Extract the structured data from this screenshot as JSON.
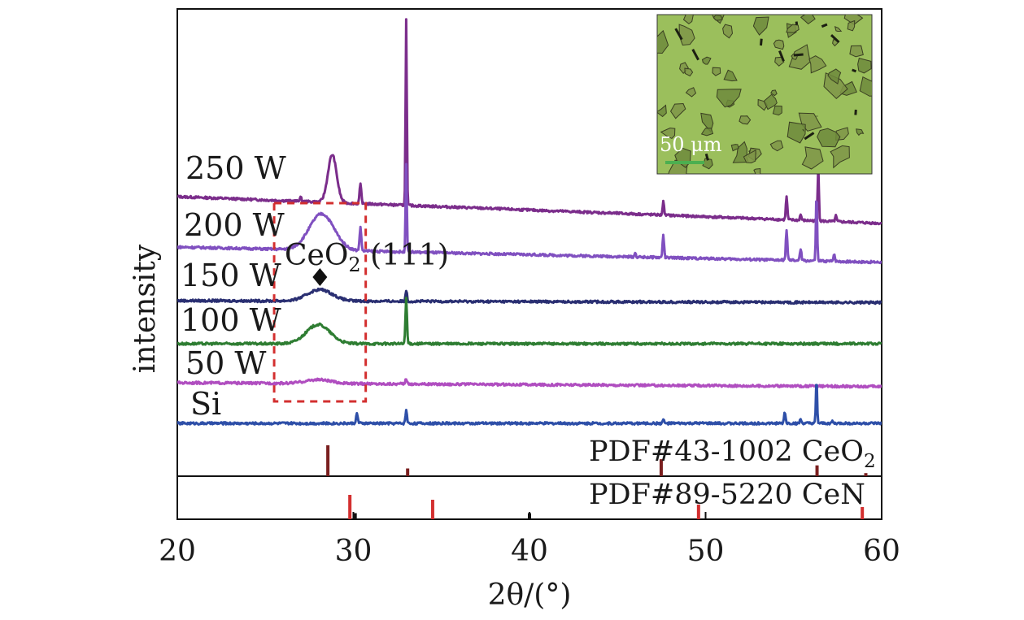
{
  "chart_data": {
    "type": "line",
    "xlabel": "2θ/(°)",
    "ylabel": "intensity",
    "xlim": [
      20,
      60
    ],
    "x_ticks": [
      "20",
      "30",
      "40",
      "50",
      "60"
    ],
    "grid": false,
    "series": [
      {
        "name": "250 W",
        "color": "#7b2d8b",
        "baseline_start": 0.84,
        "baseline_end": 0.7,
        "peaks": [
          {
            "x": 27.0,
            "h": 0.02,
            "w": 0.08
          },
          {
            "x": 28.8,
            "h": 0.25,
            "w": 0.35
          },
          {
            "x": 30.4,
            "h": 0.1,
            "w": 0.07
          },
          {
            "x": 33.0,
            "h": 0.98,
            "w": 0.05
          },
          {
            "x": 47.6,
            "h": 0.07,
            "w": 0.06
          },
          {
            "x": 54.6,
            "h": 0.12,
            "w": 0.06
          },
          {
            "x": 55.4,
            "h": 0.03,
            "w": 0.06
          },
          {
            "x": 56.4,
            "h": 0.3,
            "w": 0.05
          },
          {
            "x": 57.4,
            "h": 0.03,
            "w": 0.06
          }
        ]
      },
      {
        "name": "200 W",
        "color": "#8050c0",
        "baseline_start": 0.54,
        "baseline_end": 0.46,
        "peaks": [
          {
            "x": 28.2,
            "h": 0.19,
            "w": 1.0
          },
          {
            "x": 30.4,
            "h": 0.12,
            "w": 0.07
          },
          {
            "x": 33.0,
            "h": 0.46,
            "w": 0.05
          },
          {
            "x": 46.0,
            "h": 0.02,
            "w": 0.06
          },
          {
            "x": 47.6,
            "h": 0.12,
            "w": 0.06
          },
          {
            "x": 54.6,
            "h": 0.16,
            "w": 0.06
          },
          {
            "x": 55.4,
            "h": 0.06,
            "w": 0.06
          },
          {
            "x": 56.3,
            "h": 0.36,
            "w": 0.05
          },
          {
            "x": 57.3,
            "h": 0.04,
            "w": 0.06
          }
        ]
      },
      {
        "name": "150 W",
        "color": "#2a2f72",
        "baseline_start": 0.49,
        "baseline_end": 0.48,
        "peaks": [
          {
            "x": 28.1,
            "h": 0.06,
            "w": 1.0
          },
          {
            "x": 33.0,
            "h": 0.06,
            "w": 0.06
          }
        ]
      },
      {
        "name": "100 W",
        "color": "#2e7d32",
        "baseline_start": 0.3,
        "baseline_end": 0.3,
        "peaks": [
          {
            "x": 28.0,
            "h": 0.1,
            "w": 0.95
          },
          {
            "x": 33.0,
            "h": 0.24,
            "w": 0.06
          }
        ]
      },
      {
        "name": "50 W",
        "color": "#b04ec0",
        "baseline_start": 0.1,
        "baseline_end": 0.08,
        "peaks": [
          {
            "x": 28.0,
            "h": 0.02,
            "w": 1.0
          },
          {
            "x": 33.0,
            "h": 0.03,
            "w": 0.06
          }
        ]
      },
      {
        "name": "Si",
        "color": "#2e4fa8",
        "baseline_start": 0.0,
        "baseline_end": 0.0,
        "peaks": [
          {
            "x": 30.2,
            "h": 0.05,
            "w": 0.07
          },
          {
            "x": 33.0,
            "h": 0.07,
            "w": 0.06
          },
          {
            "x": 47.6,
            "h": 0.02,
            "w": 0.06
          },
          {
            "x": 54.5,
            "h": 0.06,
            "w": 0.06
          },
          {
            "x": 55.4,
            "h": 0.02,
            "w": 0.06
          },
          {
            "x": 56.3,
            "h": 0.23,
            "w": 0.05
          },
          {
            "x": 57.2,
            "h": 0.01,
            "w": 0.06
          }
        ]
      }
    ],
    "reference_patterns": [
      {
        "name": "PDF#43-1002 CeO2",
        "label_main": "PDF#43-1002 CeO",
        "label_sub": "2",
        "sticks": [
          {
            "x": 28.55,
            "h": 1.0,
            "color": "#7a1f1f"
          },
          {
            "x": 33.08,
            "h": 0.25,
            "color": "#7a1f1f"
          },
          {
            "x": 47.48,
            "h": 0.55,
            "color": "#7a1f1f"
          },
          {
            "x": 56.33,
            "h": 0.35,
            "color": "#7a1f1f"
          },
          {
            "x": 59.1,
            "h": 0.1,
            "color": "#7a1f1f"
          }
        ]
      },
      {
        "name": "PDF#89-5220 CeN",
        "label_main": "PDF#89-5220 CeN",
        "label_sub": "",
        "sticks": [
          {
            "x": 29.8,
            "h": 1.0,
            "color": "#d32f2f"
          },
          {
            "x": 30.1,
            "h": 0.25,
            "color": "#111111"
          },
          {
            "x": 34.5,
            "h": 0.8,
            "color": "#d32f2f"
          },
          {
            "x": 40.0,
            "h": 0.25,
            "color": "#111111"
          },
          {
            "x": 49.6,
            "h": 0.6,
            "color": "#d32f2f"
          },
          {
            "x": 58.9,
            "h": 0.5,
            "color": "#d32f2f"
          }
        ]
      }
    ],
    "annotations": [
      {
        "text_main": "CeO",
        "text_sub": "2",
        "text_rest": " (111)",
        "marker": "diamond",
        "x": 28.1
      }
    ],
    "highlight_box": {
      "x_from": 25.5,
      "x_to": 30.7,
      "color": "#d32f2f",
      "style": "dashed"
    },
    "inset": {
      "scale_label": "50 μm",
      "scale_bar_color": "#4caf50",
      "background": "#9bbf5c"
    }
  }
}
